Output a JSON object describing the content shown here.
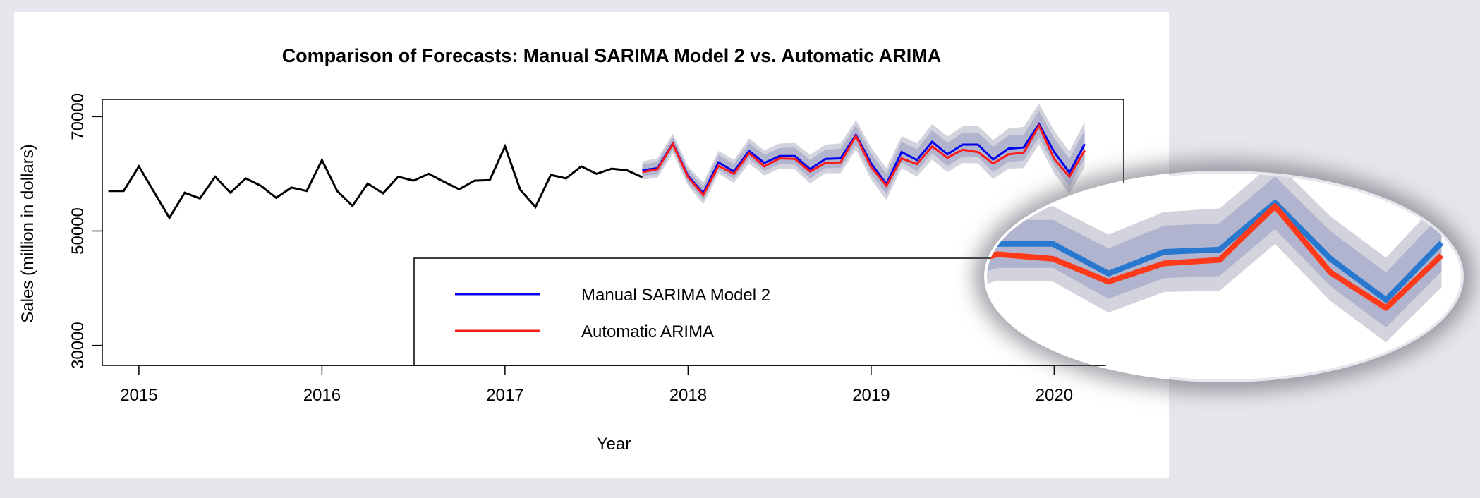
{
  "chart_data": {
    "type": "line",
    "title": "Comparison of Forecasts: Manual SARIMA Model 2 vs. Automatic ARIMA",
    "xlabel": "Year",
    "ylabel": "Sales (million in dollars)",
    "xlim": [
      2014.8,
      2020.38
    ],
    "ylim": [
      26500,
      73000
    ],
    "x_ticks": [
      2015,
      2016,
      2017,
      2018,
      2019,
      2020
    ],
    "y_ticks": [
      30000,
      50000,
      70000
    ],
    "historical": {
      "name": "Observed",
      "color": "#000000",
      "start": 2014.8333,
      "values": [
        57000,
        57000,
        61300,
        56800,
        52300,
        56700,
        55700,
        59500,
        56700,
        59200,
        57900,
        55800,
        57600,
        57000,
        62400,
        57000,
        54400,
        58300,
        56600,
        59500,
        58800,
        60000,
        58600,
        57300,
        58800,
        58900,
        64800,
        57200,
        54200,
        59800,
        59200,
        61300,
        60000,
        60900,
        60600,
        59400
      ]
    },
    "series": [
      {
        "name": "Manual SARIMA Model 2",
        "color": "#0000ee",
        "start": 2017.75,
        "values": [
          60600,
          61000,
          65300,
          59600,
          56600,
          62000,
          60400,
          64000,
          61900,
          63100,
          63100,
          60800,
          62600,
          62700,
          66800,
          61800,
          58200,
          63800,
          62400,
          65600,
          63400,
          65100,
          65100,
          62500,
          64400,
          64600,
          68700,
          63800,
          60200,
          65200
        ],
        "lower80": [
          59600,
          59900,
          64200,
          58500,
          55400,
          60700,
          59100,
          62600,
          60500,
          61700,
          61600,
          59200,
          61000,
          61000,
          65100,
          60000,
          56400,
          62000,
          60500,
          63600,
          61400,
          63000,
          63000,
          60300,
          62100,
          62300,
          66400,
          61400,
          57800,
          62700
        ],
        "upper80": [
          61600,
          62100,
          66400,
          60700,
          57800,
          63300,
          61700,
          65400,
          63300,
          64500,
          64600,
          62400,
          64200,
          64400,
          68500,
          63600,
          60000,
          65600,
          64300,
          67600,
          65400,
          67200,
          67200,
          64700,
          66700,
          66900,
          71000,
          66200,
          62600,
          67700
        ],
        "lower95": [
          59000,
          59300,
          63600,
          57900,
          54700,
          60000,
          58400,
          61800,
          59700,
          60900,
          60800,
          58300,
          60100,
          60100,
          64200,
          59000,
          55400,
          61000,
          59500,
          62500,
          60300,
          61900,
          61800,
          59100,
          60900,
          61000,
          65100,
          60100,
          56500,
          61300
        ],
        "upper95": [
          62200,
          62700,
          67000,
          61300,
          58500,
          64000,
          62400,
          66200,
          64100,
          65300,
          65400,
          63300,
          65100,
          65300,
          69400,
          64600,
          61000,
          66600,
          65300,
          68700,
          66500,
          68300,
          68400,
          65900,
          67900,
          68200,
          72300,
          67500,
          63900,
          69100
        ]
      },
      {
        "name": "Automatic ARIMA",
        "color": "#ff1a1a",
        "start": 2017.75,
        "values": [
          60300,
          60800,
          65200,
          59400,
          56300,
          61400,
          60000,
          63600,
          61300,
          62700,
          62600,
          60400,
          61900,
          62000,
          66600,
          61200,
          57900,
          62700,
          61700,
          64800,
          62800,
          64200,
          63800,
          61800,
          63400,
          63700,
          68400,
          62600,
          59500,
          64100
        ]
      }
    ],
    "legend": {
      "position": "bottom-right",
      "entries": [
        "Manual SARIMA Model 2",
        "Automatic ARIMA"
      ]
    }
  }
}
